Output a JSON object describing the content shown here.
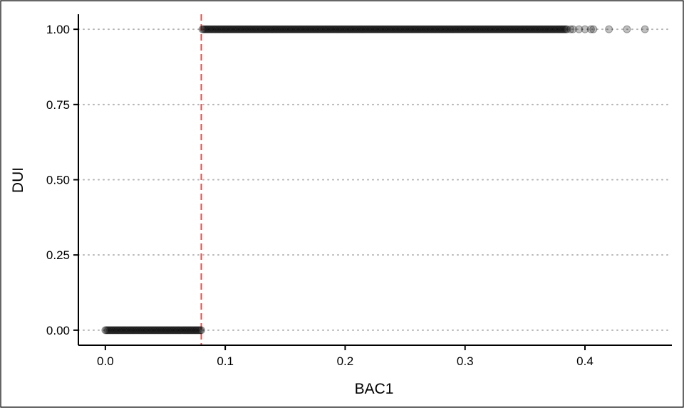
{
  "chart_data": {
    "type": "scatter",
    "title": "",
    "xlabel": "BAC1",
    "ylabel": "DUI",
    "xlim": [
      -0.0225,
      0.4725
    ],
    "ylim": [
      -0.05,
      1.05
    ],
    "x_ticks": [
      0.0,
      0.1,
      0.2,
      0.3,
      0.4
    ],
    "x_tick_labels": [
      "0.0",
      "0.1",
      "0.2",
      "0.3",
      "0.4"
    ],
    "y_ticks": [
      0.0,
      0.25,
      0.5,
      0.75,
      1.0
    ],
    "y_tick_labels": [
      "0.00",
      "0.25",
      "0.50",
      "0.75",
      "1.00"
    ],
    "grid": "horizontal dotted",
    "legend": "none",
    "reference_line": {
      "orientation": "vertical",
      "x": 0.08,
      "style": "dashed",
      "color": "#F8433A"
    },
    "point_color": "#000000",
    "point_opacity": 0.25,
    "series": [
      {
        "x_start": 0.0,
        "x_end": 0.08,
        "x_step": 0.001,
        "y": 0
      },
      {
        "x_start": 0.081,
        "x_end": 0.385,
        "x_step": 0.001,
        "y": 1
      }
    ],
    "sparse_points": [
      {
        "x": 0.388,
        "y": 1
      },
      {
        "x": 0.39,
        "y": 1
      },
      {
        "x": 0.395,
        "y": 1
      },
      {
        "x": 0.4,
        "y": 1
      },
      {
        "x": 0.405,
        "y": 1
      },
      {
        "x": 0.407,
        "y": 1
      },
      {
        "x": 0.42,
        "y": 1
      },
      {
        "x": 0.435,
        "y": 1
      },
      {
        "x": 0.45,
        "y": 1
      }
    ]
  }
}
